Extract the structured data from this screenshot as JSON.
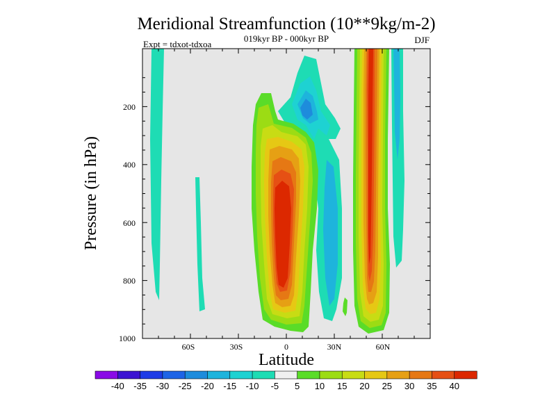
{
  "chart_data": {
    "type": "heatmap",
    "title": "Meridional Streamfunction (10**9kg/m-2)",
    "subtitle": "019kyr BP - 000kyr BP",
    "left_annotation": "Expt = tdxot-tdxoa",
    "right_annotation": "DJF",
    "xlabel": "Latitude",
    "ylabel": "Pressure (in hPa)",
    "x_ticks": [
      "60S",
      "30S",
      "0",
      "30N",
      "60N"
    ],
    "x_tick_values": [
      -60,
      -30,
      0,
      30,
      60
    ],
    "xlim": [
      -90,
      90
    ],
    "y_ticks": [
      "200",
      "400",
      "600",
      "800",
      "1000"
    ],
    "y_tick_values": [
      200,
      400,
      600,
      800,
      1000
    ],
    "ylim": [
      0,
      1000
    ],
    "y_inverted": true,
    "background_color": "#e6e6e6",
    "colorbar": {
      "levels": [
        "-40",
        "-35",
        "-30",
        "-25",
        "-20",
        "-15",
        "-10",
        "-5",
        "5",
        "10",
        "15",
        "20",
        "25",
        "30",
        "35",
        "40"
      ],
      "colors": [
        "#8a0ae6",
        "#3c14d2",
        "#1e3ce6",
        "#1e64e6",
        "#1e8cdc",
        "#1eb4dc",
        "#1ed2d2",
        "#1edcb4",
        "#f0f0f0",
        "#5adc28",
        "#9cdc14",
        "#c8dc14",
        "#e6c814",
        "#e6a014",
        "#e67814",
        "#e65014",
        "#dc2800"
      ]
    },
    "features": [
      {
        "name": "SH weak negative cell",
        "lat_range": [
          -85,
          -77
        ],
        "p_range": [
          0,
          870
        ],
        "value": -5
      },
      {
        "name": "SH weak negative cell 2",
        "lat_range": [
          -63,
          -58
        ],
        "p_range": [
          430,
          910
        ],
        "value": -5
      },
      {
        "name": "Tropical positive cell",
        "lat_range": [
          -20,
          10
        ],
        "p_range": [
          200,
          980
        ],
        "value_max": 40
      },
      {
        "name": "Tropical negative cell",
        "lat_range": [
          -8,
          22
        ],
        "p_range": [
          60,
          960
        ],
        "value_min": -20
      },
      {
        "name": "NH negative cell",
        "lat_range": [
          12,
          38
        ],
        "p_range": [
          300,
          930
        ],
        "value_min": -15
      },
      {
        "name": "NH positive cell",
        "lat_range": [
          42,
          65
        ],
        "p_range": [
          0,
          980
        ],
        "value_max": 40
      },
      {
        "name": "NH far negative cell",
        "lat_range": [
          66,
          78
        ],
        "p_range": [
          0,
          740
        ],
        "value": -5
      }
    ]
  }
}
